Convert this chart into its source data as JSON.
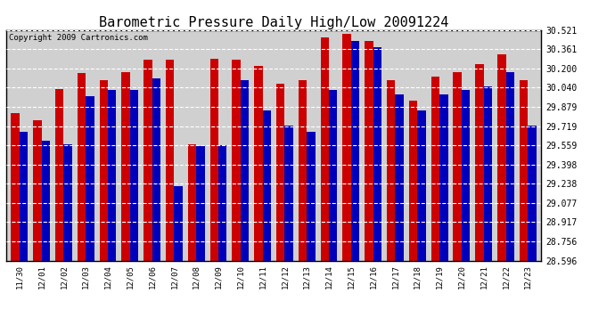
{
  "title": "Barometric Pressure Daily High/Low 20091224",
  "copyright": "Copyright 2009 Cartronics.com",
  "dates": [
    "11/30",
    "12/01",
    "12/02",
    "12/03",
    "12/04",
    "12/05",
    "12/06",
    "12/07",
    "12/08",
    "12/09",
    "12/10",
    "12/11",
    "12/12",
    "12/13",
    "12/14",
    "12/15",
    "12/16",
    "12/17",
    "12/18",
    "12/19",
    "12/20",
    "12/21",
    "12/22",
    "12/23"
  ],
  "highs": [
    29.83,
    29.77,
    30.03,
    30.16,
    30.1,
    30.17,
    30.27,
    30.27,
    29.57,
    30.28,
    30.27,
    30.22,
    30.07,
    30.1,
    30.46,
    30.49,
    30.43,
    30.1,
    29.93,
    30.13,
    30.17,
    30.24,
    30.32,
    30.1
  ],
  "lows": [
    29.67,
    29.6,
    29.57,
    29.97,
    30.02,
    30.02,
    30.12,
    29.22,
    29.55,
    29.56,
    30.1,
    29.85,
    29.72,
    29.67,
    30.02,
    30.43,
    30.38,
    29.98,
    29.85,
    29.98,
    30.02,
    30.05,
    30.17,
    29.72
  ],
  "y_ticks": [
    28.596,
    28.756,
    28.917,
    29.077,
    29.238,
    29.398,
    29.559,
    29.719,
    29.879,
    30.04,
    30.2,
    30.361,
    30.521
  ],
  "y_min": 28.596,
  "y_max": 30.521,
  "high_color": "#cc0000",
  "low_color": "#0000bb",
  "bg_color": "#ffffff",
  "plot_bg_color": "#d0d0d0",
  "grid_color": "#ffffff",
  "title_fontsize": 11,
  "bar_width": 0.38,
  "copyright_fontsize": 6.5,
  "tick_fontsize": 7,
  "xtick_fontsize": 6.5
}
